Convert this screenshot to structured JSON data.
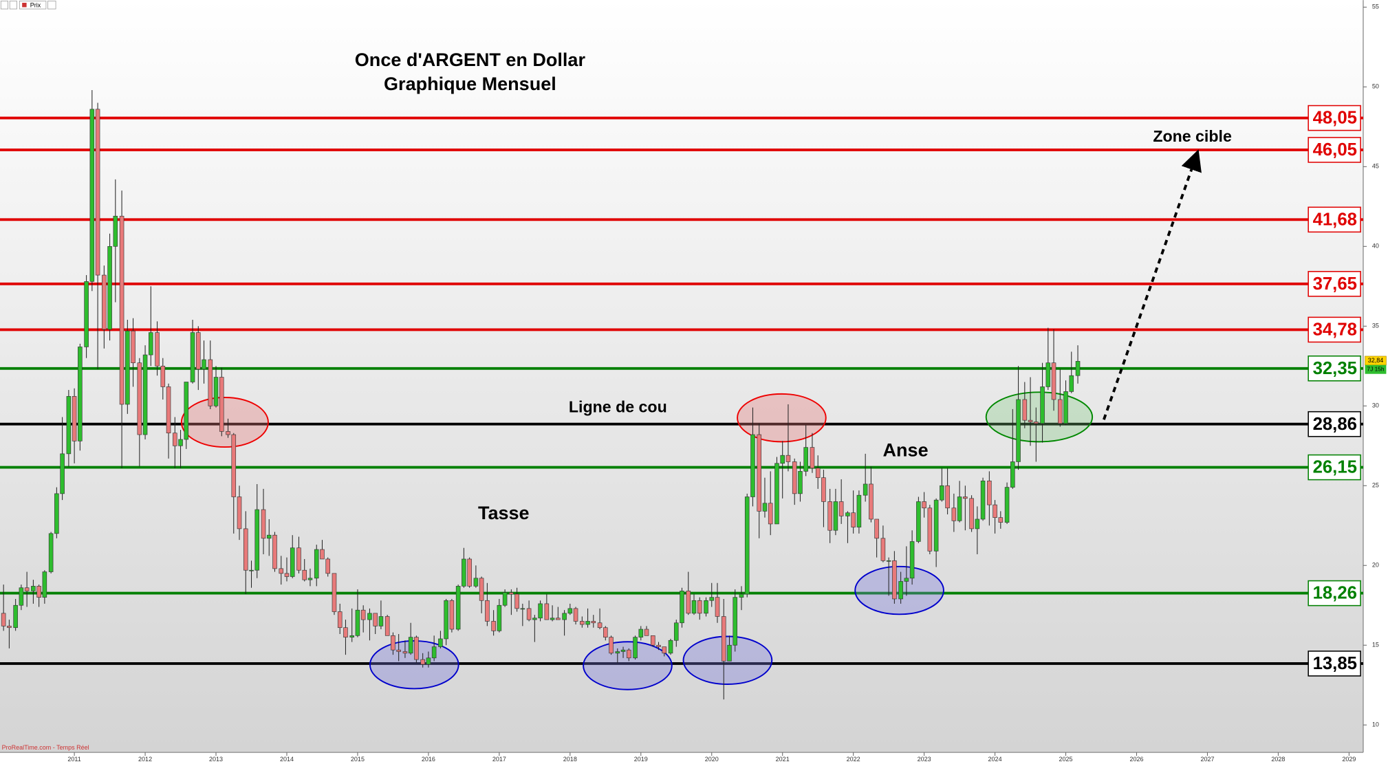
{
  "chart_data": {
    "type": "candlestick",
    "title": "Once d'ARGENT en Dollar",
    "subtitle": "Graphique Mensuel",
    "toolbar_label": "Prix",
    "footer": "ProRealTime.com - Temps Réel",
    "annotations": [
      "Ligne de cou",
      "Tasse",
      "Anse",
      "Zone cible"
    ],
    "xlim": [
      2009.95,
      2029.2
    ],
    "xticks": [
      2011,
      2012,
      2013,
      2014,
      2015,
      2016,
      2017,
      2018,
      2019,
      2020,
      2021,
      2022,
      2023,
      2024,
      2025,
      2026,
      2027,
      2028,
      2029
    ],
    "ylim": [
      8.28,
      55.44
    ],
    "yticks": [
      10,
      15,
      20,
      25,
      30,
      35,
      40,
      45,
      50,
      55
    ],
    "up_color": "#2ebd2e",
    "down_color": "#e87a7a",
    "last_price": {
      "value": 32.84,
      "label": "32,84"
    },
    "countdown": "7J 15h",
    "levels": [
      {
        "value": 48.05,
        "label": "48,05",
        "color": "#e00000"
      },
      {
        "value": 46.05,
        "label": "46,05",
        "color": "#e00000"
      },
      {
        "value": 41.68,
        "label": "41,68",
        "color": "#e00000"
      },
      {
        "value": 37.65,
        "label": "37,65",
        "color": "#e00000"
      },
      {
        "value": 34.78,
        "label": "34,78",
        "color": "#e00000"
      },
      {
        "value": 32.35,
        "label": "32,35",
        "color": "#008000"
      },
      {
        "value": 28.86,
        "label": "28,86",
        "color": "#000000"
      },
      {
        "value": 26.15,
        "label": "26,15",
        "color": "#008000"
      },
      {
        "value": 18.26,
        "label": "18,26",
        "color": "#008000"
      },
      {
        "value": 13.85,
        "label": "13,85",
        "color": "#000000"
      }
    ],
    "x": [
      2010.0,
      2010.08,
      2010.17,
      2010.25,
      2010.33,
      2010.42,
      2010.5,
      2010.58,
      2010.67,
      2010.75,
      2010.83,
      2010.92,
      2011.0,
      2011.08,
      2011.17,
      2011.25,
      2011.33,
      2011.42,
      2011.5,
      2011.58,
      2011.67,
      2011.75,
      2011.83,
      2011.92,
      2012.0,
      2012.08,
      2012.17,
      2012.25,
      2012.33,
      2012.42,
      2012.5,
      2012.58,
      2012.67,
      2012.75,
      2012.83,
      2012.92,
      2013.0,
      2013.08,
      2013.17,
      2013.25,
      2013.33,
      2013.42,
      2013.5,
      2013.58,
      2013.67,
      2013.75,
      2013.83,
      2013.92,
      2014.0,
      2014.08,
      2014.17,
      2014.25,
      2014.33,
      2014.42,
      2014.5,
      2014.58,
      2014.67,
      2014.75,
      2014.83,
      2014.92,
      2015.0,
      2015.08,
      2015.17,
      2015.25,
      2015.33,
      2015.42,
      2015.5,
      2015.58,
      2015.67,
      2015.75,
      2015.83,
      2015.92,
      2016.0,
      2016.08,
      2016.17,
      2016.25,
      2016.33,
      2016.42,
      2016.5,
      2016.58,
      2016.67,
      2016.75,
      2016.83,
      2016.92,
      2017.0,
      2017.08,
      2017.17,
      2017.25,
      2017.33,
      2017.42,
      2017.5,
      2017.58,
      2017.67,
      2017.75,
      2017.83,
      2017.92,
      2018.0,
      2018.08,
      2018.17,
      2018.25,
      2018.33,
      2018.42,
      2018.5,
      2018.58,
      2018.67,
      2018.75,
      2018.83,
      2018.92,
      2019.0,
      2019.08,
      2019.17,
      2019.25,
      2019.33,
      2019.42,
      2019.5,
      2019.58,
      2019.67,
      2019.75,
      2019.83,
      2019.92,
      2020.0,
      2020.08,
      2020.17,
      2020.25,
      2020.33,
      2020.42,
      2020.5,
      2020.58,
      2020.67,
      2020.75,
      2020.83,
      2020.92,
      2021.0,
      2021.08,
      2021.17,
      2021.25,
      2021.33,
      2021.42,
      2021.5,
      2021.58,
      2021.67,
      2021.75,
      2021.83,
      2021.92,
      2022.0,
      2022.08,
      2022.17,
      2022.25,
      2022.33,
      2022.42,
      2022.5,
      2022.58,
      2022.67,
      2022.75,
      2022.83,
      2022.92,
      2023.0,
      2023.08,
      2023.17,
      2023.25,
      2023.33,
      2023.42,
      2023.5,
      2023.58,
      2023.67,
      2023.75,
      2023.83,
      2023.92,
      2024.0,
      2024.08,
      2024.17,
      2024.25,
      2024.33,
      2024.42,
      2024.5,
      2024.58,
      2024.67,
      2024.75,
      2024.83,
      2024.92,
      2025.0,
      2025.08,
      2025.17
    ],
    "candles": [
      [
        17.0,
        18.8,
        15.9,
        16.2
      ],
      [
        16.2,
        16.6,
        14.8,
        16.1
      ],
      [
        16.1,
        17.9,
        15.9,
        17.5
      ],
      [
        17.5,
        18.8,
        17.2,
        18.6
      ],
      [
        18.6,
        19.6,
        17.4,
        18.4
      ],
      [
        18.4,
        19.1,
        17.6,
        18.7
      ],
      [
        18.7,
        18.8,
        17.4,
        18.0
      ],
      [
        18.0,
        19.7,
        17.6,
        19.6
      ],
      [
        19.6,
        22.1,
        19.5,
        22.0
      ],
      [
        22.0,
        24.9,
        21.7,
        24.5
      ],
      [
        24.5,
        29.3,
        24.1,
        27.0
      ],
      [
        27.0,
        31.0,
        26.2,
        30.6
      ],
      [
        30.6,
        31.1,
        26.4,
        27.8
      ],
      [
        27.8,
        33.9,
        27.2,
        33.7
      ],
      [
        33.7,
        38.2,
        33.0,
        37.8
      ],
      [
        37.8,
        49.8,
        37.2,
        48.6
      ],
      [
        48.6,
        49.0,
        32.3,
        38.2
      ],
      [
        38.2,
        38.8,
        33.6,
        34.8
      ],
      [
        34.8,
        40.8,
        34.1,
        40.0
      ],
      [
        40.0,
        44.2,
        36.5,
        41.9
      ],
      [
        41.9,
        43.5,
        26.1,
        30.1
      ],
      [
        30.1,
        35.4,
        29.5,
        34.7
      ],
      [
        34.7,
        35.5,
        31.2,
        32.7
      ],
      [
        32.7,
        33.0,
        26.2,
        28.2
      ],
      [
        28.2,
        33.8,
        27.9,
        33.2
      ],
      [
        33.2,
        37.5,
        32.5,
        34.6
      ],
      [
        34.6,
        35.3,
        31.9,
        32.5
      ],
      [
        32.5,
        33.0,
        30.4,
        31.2
      ],
      [
        31.2,
        31.4,
        26.7,
        28.3
      ],
      [
        28.3,
        29.3,
        26.1,
        27.5
      ],
      [
        27.5,
        28.5,
        26.1,
        27.9
      ],
      [
        27.9,
        31.5,
        27.3,
        31.5
      ],
      [
        31.5,
        35.4,
        31.4,
        34.6
      ],
      [
        34.6,
        35.0,
        31.0,
        32.3
      ],
      [
        32.3,
        34.1,
        31.4,
        32.9
      ],
      [
        32.9,
        34.1,
        29.8,
        30.0
      ],
      [
        30.0,
        32.5,
        29.9,
        31.8
      ],
      [
        31.8,
        32.4,
        28.1,
        28.4
      ],
      [
        28.4,
        29.2,
        28.0,
        28.2
      ],
      [
        28.2,
        28.3,
        22.0,
        24.3
      ],
      [
        24.3,
        25.0,
        21.6,
        22.3
      ],
      [
        22.3,
        23.4,
        18.2,
        19.7
      ],
      [
        19.7,
        20.3,
        18.6,
        19.7
      ],
      [
        19.7,
        25.1,
        19.2,
        23.5
      ],
      [
        23.5,
        24.8,
        20.7,
        21.7
      ],
      [
        21.7,
        22.9,
        20.6,
        21.9
      ],
      [
        21.9,
        22.1,
        19.6,
        19.8
      ],
      [
        19.8,
        20.6,
        18.8,
        19.5
      ],
      [
        19.5,
        20.5,
        19.0,
        19.3
      ],
      [
        19.3,
        21.9,
        19.2,
        21.1
      ],
      [
        21.1,
        21.8,
        19.5,
        19.7
      ],
      [
        19.7,
        20.4,
        19.0,
        19.1
      ],
      [
        19.1,
        19.8,
        18.7,
        19.2
      ],
      [
        19.2,
        21.3,
        18.7,
        21.0
      ],
      [
        21.0,
        21.6,
        20.4,
        20.4
      ],
      [
        20.4,
        20.5,
        19.3,
        19.5
      ],
      [
        19.5,
        19.5,
        16.9,
        17.1
      ],
      [
        17.1,
        17.6,
        15.7,
        16.1
      ],
      [
        16.1,
        16.6,
        14.4,
        15.5
      ],
      [
        15.5,
        17.3,
        15.2,
        15.6
      ],
      [
        15.6,
        18.5,
        15.5,
        17.2
      ],
      [
        17.2,
        17.5,
        15.8,
        16.6
      ],
      [
        16.6,
        17.3,
        15.3,
        17.0
      ],
      [
        17.0,
        17.0,
        15.7,
        16.2
      ],
      [
        16.2,
        17.8,
        16.0,
        16.8
      ],
      [
        16.8,
        16.9,
        15.6,
        15.6
      ],
      [
        15.6,
        15.8,
        14.4,
        14.7
      ],
      [
        14.7,
        15.7,
        14.0,
        14.6
      ],
      [
        14.6,
        15.3,
        14.2,
        14.5
      ],
      [
        14.5,
        16.4,
        14.4,
        15.5
      ],
      [
        15.5,
        15.6,
        13.9,
        14.1
      ],
      [
        14.1,
        14.5,
        13.6,
        13.8
      ],
      [
        13.8,
        14.6,
        13.6,
        14.2
      ],
      [
        14.2,
        15.6,
        14.0,
        14.9
      ],
      [
        14.9,
        15.9,
        14.8,
        15.4
      ],
      [
        15.4,
        17.9,
        15.0,
        17.8
      ],
      [
        17.8,
        17.9,
        15.8,
        16.0
      ],
      [
        16.0,
        18.8,
        15.9,
        18.7
      ],
      [
        18.7,
        21.1,
        18.6,
        20.4
      ],
      [
        20.4,
        20.5,
        18.6,
        18.7
      ],
      [
        18.7,
        20.0,
        18.6,
        19.2
      ],
      [
        19.2,
        19.3,
        17.0,
        17.8
      ],
      [
        17.8,
        18.9,
        16.2,
        16.5
      ],
      [
        16.5,
        17.2,
        15.6,
        15.9
      ],
      [
        15.9,
        17.9,
        15.8,
        17.5
      ],
      [
        17.5,
        18.5,
        17.4,
        18.3
      ],
      [
        18.3,
        18.5,
        16.9,
        18.2
      ],
      [
        18.2,
        18.6,
        17.1,
        17.3
      ],
      [
        17.3,
        17.6,
        16.2,
        17.3
      ],
      [
        17.3,
        17.8,
        16.5,
        16.6
      ],
      [
        16.6,
        16.9,
        15.2,
        16.7
      ],
      [
        16.7,
        17.8,
        16.5,
        17.6
      ],
      [
        17.6,
        18.2,
        16.6,
        16.6
      ],
      [
        16.6,
        17.5,
        16.5,
        16.7
      ],
      [
        16.7,
        17.4,
        16.6,
        16.6
      ],
      [
        16.6,
        17.2,
        15.6,
        17.0
      ],
      [
        17.0,
        17.6,
        16.9,
        17.3
      ],
      [
        17.3,
        17.4,
        16.3,
        16.5
      ],
      [
        16.5,
        16.8,
        16.1,
        16.3
      ],
      [
        16.3,
        17.3,
        16.1,
        16.5
      ],
      [
        16.5,
        16.9,
        16.1,
        16.4
      ],
      [
        16.4,
        17.3,
        16.0,
        16.1
      ],
      [
        16.1,
        16.2,
        15.3,
        15.5
      ],
      [
        15.5,
        15.6,
        14.4,
        14.5
      ],
      [
        14.5,
        14.8,
        13.9,
        14.6
      ],
      [
        14.6,
        14.9,
        14.2,
        14.7
      ],
      [
        14.7,
        14.8,
        14.0,
        14.2
      ],
      [
        14.2,
        15.6,
        14.1,
        15.5
      ],
      [
        15.5,
        16.2,
        15.3,
        16.0
      ],
      [
        16.0,
        16.2,
        15.6,
        15.6
      ],
      [
        15.6,
        15.6,
        14.9,
        15.0
      ],
      [
        15.0,
        15.2,
        14.7,
        14.9
      ],
      [
        14.9,
        14.9,
        14.3,
        14.5
      ],
      [
        14.5,
        15.4,
        14.4,
        15.3
      ],
      [
        15.3,
        16.6,
        14.9,
        16.4
      ],
      [
        16.4,
        18.6,
        16.1,
        18.4
      ],
      [
        18.4,
        19.6,
        16.9,
        17.0
      ],
      [
        17.0,
        18.2,
        16.9,
        17.8
      ],
      [
        17.8,
        18.0,
        16.6,
        17.0
      ],
      [
        17.0,
        18.0,
        16.8,
        17.8
      ],
      [
        17.8,
        18.9,
        17.4,
        18.0
      ],
      [
        18.0,
        18.9,
        16.4,
        16.8
      ],
      [
        16.8,
        17.9,
        11.6,
        14.0
      ],
      [
        14.0,
        15.6,
        14.0,
        15.0
      ],
      [
        15.0,
        18.5,
        14.6,
        18.0
      ],
      [
        18.0,
        18.7,
        17.2,
        18.2
      ],
      [
        18.2,
        24.5,
        18.0,
        24.3
      ],
      [
        24.3,
        29.9,
        23.7,
        28.2
      ],
      [
        28.2,
        28.9,
        21.7,
        23.4
      ],
      [
        23.4,
        25.5,
        23.0,
        23.9
      ],
      [
        23.9,
        25.9,
        21.9,
        22.6
      ],
      [
        22.6,
        26.8,
        22.6,
        26.4
      ],
      [
        26.4,
        27.8,
        24.2,
        26.9
      ],
      [
        26.9,
        30.1,
        25.9,
        26.5
      ],
      [
        26.5,
        26.7,
        23.8,
        24.5
      ],
      [
        24.5,
        26.5,
        24.0,
        25.9
      ],
      [
        25.9,
        28.8,
        25.6,
        27.4
      ],
      [
        27.4,
        28.3,
        25.8,
        26.1
      ],
      [
        26.1,
        26.9,
        24.8,
        25.5
      ],
      [
        25.5,
        26.0,
        22.4,
        24.0
      ],
      [
        24.0,
        24.8,
        21.4,
        22.2
      ],
      [
        22.2,
        24.8,
        21.9,
        24.0
      ],
      [
        24.0,
        25.4,
        22.6,
        23.1
      ],
      [
        23.1,
        23.4,
        21.4,
        23.3
      ],
      [
        23.3,
        24.7,
        22.0,
        22.4
      ],
      [
        22.4,
        24.7,
        22.0,
        24.4
      ],
      [
        24.4,
        27.0,
        24.0,
        25.1
      ],
      [
        25.1,
        26.2,
        22.7,
        22.9
      ],
      [
        22.9,
        22.9,
        20.5,
        21.7
      ],
      [
        21.7,
        22.5,
        20.2,
        20.3
      ],
      [
        20.3,
        20.5,
        18.1,
        20.3
      ],
      [
        20.3,
        20.9,
        17.6,
        17.9
      ],
      [
        17.9,
        19.6,
        17.6,
        19.0
      ],
      [
        19.0,
        21.2,
        18.1,
        19.2
      ],
      [
        19.2,
        22.2,
        18.8,
        21.5
      ],
      [
        21.5,
        24.3,
        21.4,
        24.0
      ],
      [
        24.0,
        24.6,
        23.0,
        23.6
      ],
      [
        23.6,
        23.8,
        20.7,
        20.9
      ],
      [
        20.9,
        24.2,
        19.9,
        24.1
      ],
      [
        24.1,
        26.1,
        24.0,
        25.0
      ],
      [
        25.0,
        26.1,
        23.2,
        23.6
      ],
      [
        23.6,
        24.5,
        22.1,
        22.8
      ],
      [
        22.8,
        25.3,
        22.7,
        24.3
      ],
      [
        24.3,
        25.0,
        22.2,
        24.2
      ],
      [
        24.2,
        24.4,
        22.1,
        22.3
      ],
      [
        22.3,
        23.7,
        20.7,
        22.9
      ],
      [
        22.9,
        25.5,
        22.8,
        25.3
      ],
      [
        25.3,
        25.9,
        22.5,
        23.8
      ],
      [
        23.8,
        24.1,
        22.0,
        23.0
      ],
      [
        23.0,
        23.4,
        22.3,
        22.7
      ],
      [
        22.7,
        25.2,
        22.6,
        24.9
      ],
      [
        24.9,
        29.8,
        24.8,
        26.5
      ],
      [
        26.5,
        32.5,
        26.0,
        30.4
      ],
      [
        30.4,
        31.5,
        28.6,
        29.1
      ],
      [
        29.1,
        31.8,
        27.5,
        29.0
      ],
      [
        29.0,
        29.9,
        26.5,
        28.9
      ],
      [
        28.9,
        32.7,
        27.7,
        31.2
      ],
      [
        31.2,
        34.9,
        31.0,
        32.7
      ],
      [
        32.7,
        34.8,
        29.7,
        30.4
      ],
      [
        30.4,
        32.3,
        28.7,
        28.9
      ],
      [
        28.9,
        31.6,
        28.8,
        30.9
      ],
      [
        30.9,
        33.4,
        30.8,
        31.9
      ],
      [
        31.9,
        33.8,
        31.4,
        32.8
      ]
    ]
  }
}
